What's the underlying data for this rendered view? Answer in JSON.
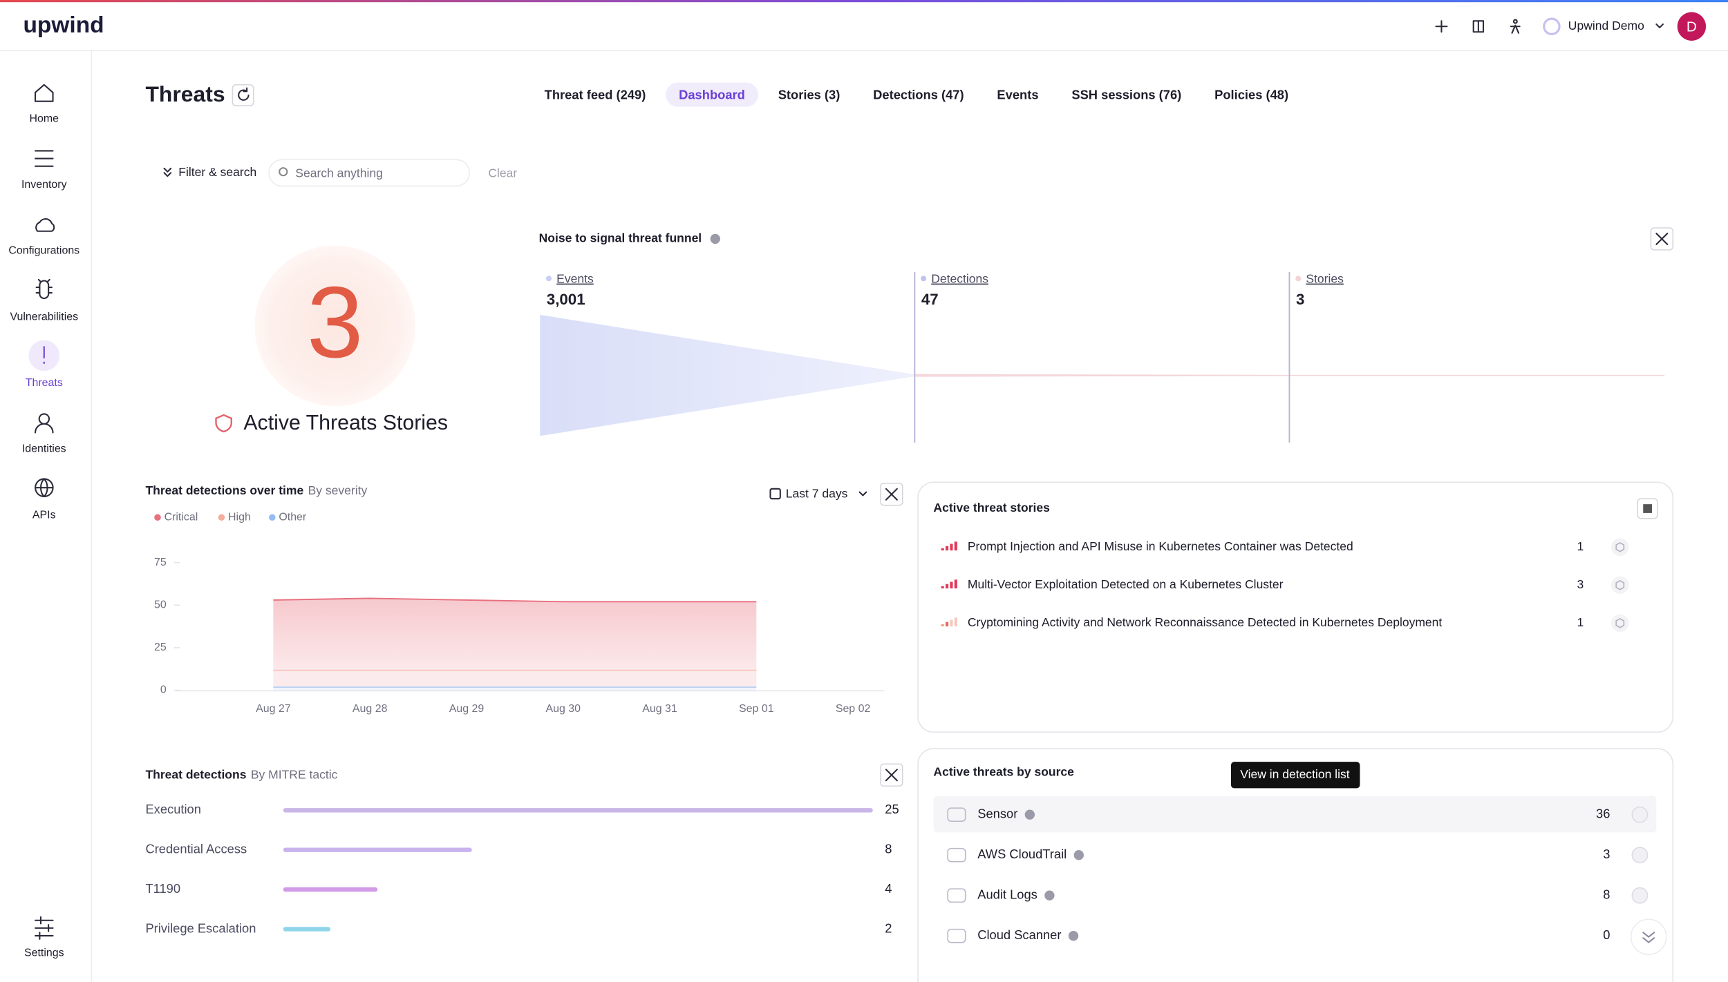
{
  "header": {
    "logo": "upwind",
    "account": "Upwind Demo",
    "avatar": "D"
  },
  "sidebar": {
    "items": [
      "Home",
      "Inventory",
      "Configurations",
      "Vulnerabilities",
      "Threats",
      "Identities",
      "APIs"
    ],
    "active": 4,
    "settings": "Settings"
  },
  "page": {
    "title": "Threats",
    "tabs": [
      "Threat feed (249)",
      "Dashboard",
      "Stories (3)",
      "Detections (47)",
      "Events",
      "SSH sessions (76)",
      "Policies (48)"
    ],
    "active_tab": 1
  },
  "filter": {
    "button": "Filter & search",
    "placeholder": "Search anything",
    "clear": "Clear"
  },
  "active_stories": {
    "count": 3,
    "label": "Active Threats Stories"
  },
  "funnel": {
    "type": "funnel",
    "title": "Noise to signal threat funnel",
    "stages": [
      {
        "name": "Events",
        "value": 3001,
        "value_label": "3,001"
      },
      {
        "name": "Detections",
        "value": 47
      },
      {
        "name": "Stories",
        "value": 3
      }
    ]
  },
  "detections_over_time": {
    "type": "area",
    "title": "Threat detections over time",
    "subtitle": "By severity",
    "range": "Last 7 days",
    "categories": [
      "Aug 27",
      "Aug 28",
      "Aug 29",
      "Aug 30",
      "Aug 31",
      "Sep 01",
      "Sep 02"
    ],
    "series": [
      {
        "name": "Critical",
        "color": "#e8707f",
        "values": [
          41,
          42,
          41,
          40,
          40,
          40,
          null
        ]
      },
      {
        "name": "High",
        "color": "#f6ad9c",
        "values": [
          10,
          10,
          10,
          10,
          10,
          10,
          null
        ]
      },
      {
        "name": "Other",
        "color": "#93bdf2",
        "values": [
          2,
          2,
          2,
          2,
          2,
          2,
          null
        ]
      }
    ],
    "ylim": [
      0,
      75
    ],
    "yticks": [
      0,
      25,
      50,
      75
    ]
  },
  "mitre": {
    "type": "bar",
    "title": "Threat detections",
    "subtitle": "By MITRE tactic",
    "categories": [
      "Execution",
      "Credential Access",
      "T1190",
      "Privilege Escalation"
    ],
    "values": [
      25,
      8,
      4,
      2
    ],
    "colors": [
      "#c9b6e6",
      "#c8b3ee",
      "#d29be8",
      "#8fd6ea"
    ]
  },
  "stories_panel": {
    "title": "Active threat stories",
    "rows": [
      {
        "name": "Prompt Injection and API Misuse in Kubernetes Container was Detected",
        "count": 1
      },
      {
        "name": "Multi-Vector Exploitation Detected on a Kubernetes Cluster",
        "count": 3
      },
      {
        "name": "Cryptomining Activity and Network Reconnaissance Detected in Kubernetes Deployment",
        "count": 1
      }
    ]
  },
  "sources_panel": {
    "title": "Active threats by source",
    "tooltip": "View in detection list",
    "rows": [
      {
        "name": "Sensor",
        "count": 36
      },
      {
        "name": "AWS CloudTrail",
        "count": 3
      },
      {
        "name": "Audit Logs",
        "count": 8
      },
      {
        "name": "Cloud Scanner",
        "count": 0
      }
    ]
  }
}
